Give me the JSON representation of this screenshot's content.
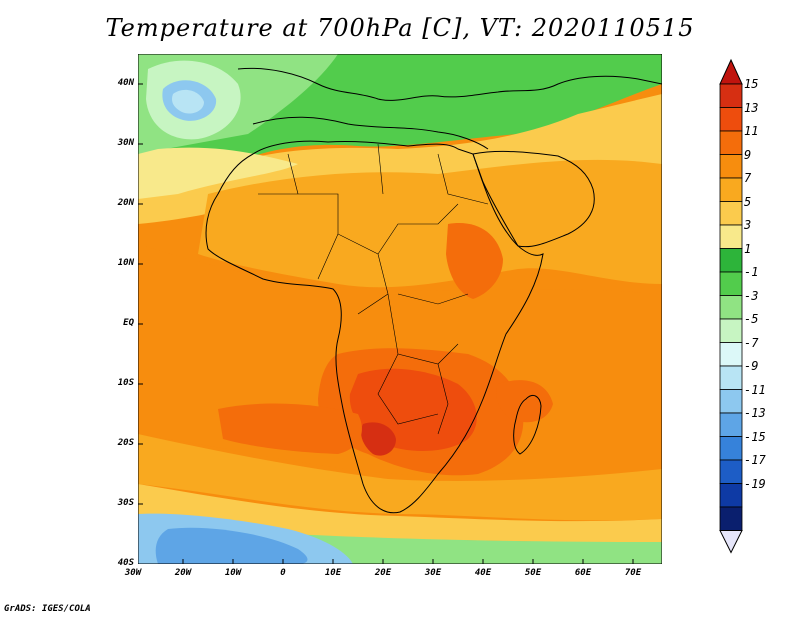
{
  "title": "Temperature at 700hPa [C], VT: 2020110515",
  "credit": "GrADS: IGES/COLA",
  "lat_labels": [
    "40N",
    "30N",
    "20N",
    "10N",
    "EQ",
    "10S",
    "20S",
    "30S",
    "40S"
  ],
  "lon_labels": [
    "30W",
    "20W",
    "10W",
    "0",
    "10E",
    "20E",
    "30E",
    "40E",
    "50E",
    "60E",
    "70E"
  ],
  "colorbar": {
    "labels": [
      "15",
      "13",
      "11",
      "9",
      "7",
      "5",
      "3",
      "1",
      "-1",
      "-3",
      "-5",
      "-7",
      "-9",
      "-11",
      "-13",
      "-15",
      "-17",
      "-19"
    ],
    "colors": [
      "#d62f12",
      "#ee4d0d",
      "#f46d0b",
      "#f78d0e",
      "#f9a91f",
      "#fbcb4d",
      "#f8e98b",
      "#2db43a",
      "#52cc4c",
      "#90e383",
      "#c7f5c2",
      "#dcf8f8",
      "#b8e4f4",
      "#8dc8ef",
      "#5ea5e6",
      "#3682da",
      "#1d5dc6",
      "#0e3aa5",
      "#0a1f6e"
    ],
    "top_arrow_color": "#c0140e",
    "bottom_arrow_color": "#e6e6fa"
  },
  "map_extent": {
    "lon": [
      -30,
      75
    ],
    "lat": [
      -40,
      45
    ]
  }
}
